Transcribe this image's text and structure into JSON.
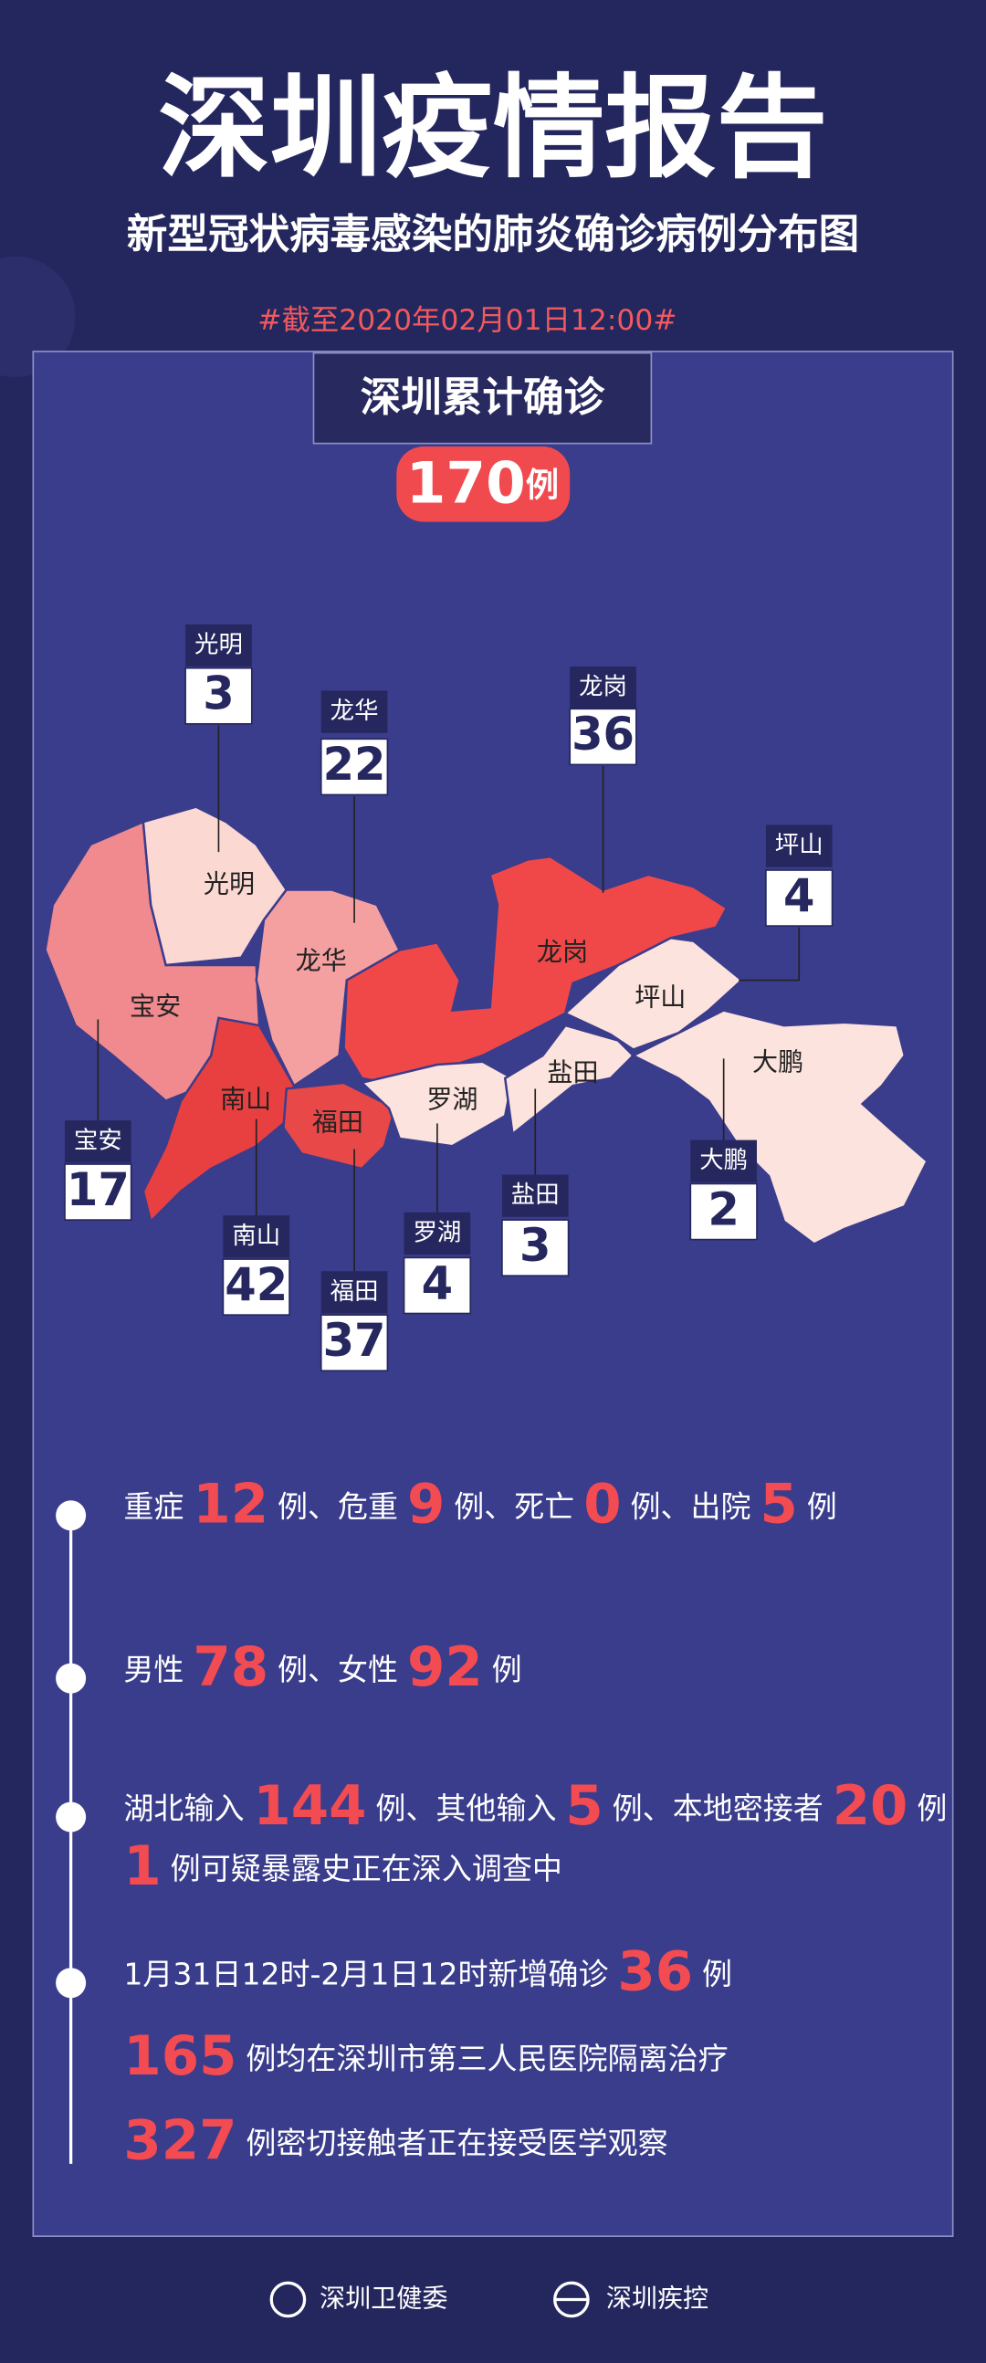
{
  "header": {
    "title": "深圳疫情报告",
    "subtitle": "新型冠状病毒感染的肺炎确诊病例分布图",
    "date": "#截至2020年02月01日12:00#"
  },
  "total": {
    "label": "深圳累计确诊",
    "value": 170,
    "unit": "例"
  },
  "districts": [
    {
      "name": "光明",
      "cases": 3
    },
    {
      "name": "龙华",
      "cases": 22
    },
    {
      "name": "龙岗",
      "cases": 36
    },
    {
      "name": "坪山",
      "cases": 4
    },
    {
      "name": "宝安",
      "cases": 17
    },
    {
      "name": "南山",
      "cases": 42
    },
    {
      "name": "福田",
      "cases": 37
    },
    {
      "name": "罗湖",
      "cases": 4
    },
    {
      "name": "盐田",
      "cases": 3
    },
    {
      "name": "大鹏",
      "cases": 2
    }
  ],
  "stats": [
    [
      [
        "重症",
        12,
        "例、危重",
        9,
        "例、死亡",
        0,
        "例、出院",
        5,
        "例"
      ]
    ],
    [
      [
        "男性",
        78,
        "例、女性",
        92,
        "例"
      ]
    ],
    [
      [
        "湖北输入",
        144,
        "例、其他输入",
        5,
        "例、本地密接者",
        20,
        "例"
      ],
      [
        1,
        "例可疑暴露史正在深入调查中"
      ]
    ],
    [
      [
        "1月31日12时-2月1日12时新增确诊",
        36,
        "例"
      ],
      [
        165,
        "例均在深圳市第三人民医院隔离治疗"
      ],
      [
        327,
        "例密切接触者正在接受医学观察"
      ]
    ]
  ],
  "footer": [
    "深圳卫健委",
    "深圳疾控"
  ]
}
